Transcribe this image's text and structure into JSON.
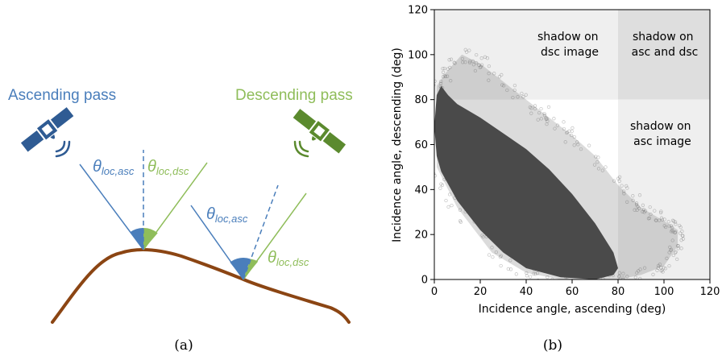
{
  "panel_a": {
    "caption": "(a)",
    "ascending_label": "Ascending pass",
    "descending_label": "Descending pass",
    "theta_symbol": "θ",
    "loc_asc_subscript": "loc,asc",
    "loc_dsc_subscript": "loc,dsc",
    "colors": {
      "ascending": "#4a7ebb",
      "descending": "#8fbd5a",
      "satellite_blue": "#2f5b93",
      "satellite_green": "#5b8a2e",
      "terrain": "#8b4513"
    }
  },
  "panel_b": {
    "caption": "(b)",
    "zones": {
      "shadow_dsc": [
        "shadow on",
        "dsc image"
      ],
      "shadow_both": [
        "shadow on",
        "asc and dsc"
      ],
      "shadow_asc": [
        "shadow on",
        "asc image"
      ]
    }
  },
  "chart_data": {
    "type": "scatter",
    "xlabel": "Incidence angle, ascending (deg)",
    "ylabel": "Incidence angle, descending (deg)",
    "xlim": [
      0,
      120
    ],
    "ylim": [
      0,
      120
    ],
    "xticks": [
      0,
      20,
      40,
      60,
      80,
      100,
      120
    ],
    "yticks": [
      0,
      20,
      40,
      60,
      80,
      100,
      120
    ],
    "shadow_threshold_asc": 80,
    "shadow_threshold_dsc": 80,
    "point_color": "#4a4a4a",
    "dense_region": [
      [
        1,
        82
      ],
      [
        3,
        86
      ],
      [
        6,
        82
      ],
      [
        10,
        78
      ],
      [
        20,
        72
      ],
      [
        30,
        65
      ],
      [
        40,
        58
      ],
      [
        50,
        49
      ],
      [
        60,
        38
      ],
      [
        70,
        25
      ],
      [
        78,
        12
      ],
      [
        80,
        5
      ],
      [
        78,
        2
      ],
      [
        70,
        0
      ],
      [
        55,
        1
      ],
      [
        40,
        5
      ],
      [
        30,
        12
      ],
      [
        20,
        22
      ],
      [
        10,
        35
      ],
      [
        3,
        48
      ],
      [
        1,
        55
      ],
      [
        0,
        68
      ]
    ],
    "sparse_region": [
      [
        1,
        86
      ],
      [
        5,
        92
      ],
      [
        12,
        100
      ],
      [
        20,
        96
      ],
      [
        30,
        88
      ],
      [
        40,
        80
      ],
      [
        50,
        72
      ],
      [
        60,
        64
      ],
      [
        70,
        55
      ],
      [
        80,
        42
      ],
      [
        90,
        32
      ],
      [
        100,
        26
      ],
      [
        106,
        22
      ],
      [
        106,
        15
      ],
      [
        100,
        6
      ],
      [
        90,
        2
      ],
      [
        80,
        0
      ],
      [
        70,
        -1
      ],
      [
        55,
        0
      ],
      [
        40,
        3
      ],
      [
        25,
        12
      ],
      [
        10,
        32
      ],
      [
        1,
        50
      ]
    ]
  }
}
